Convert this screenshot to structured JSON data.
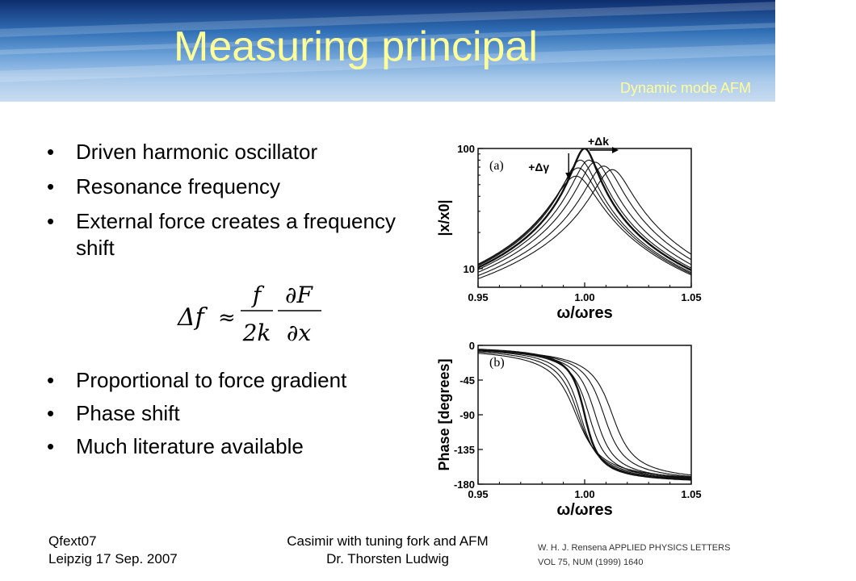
{
  "slide": {
    "title": "Measuring principal",
    "subtitle": "Dynamic mode AFM"
  },
  "bullets_top": [
    "Driven harmonic oscillator",
    "Resonance frequency",
    "External force creates a frequency shift"
  ],
  "formula": {
    "lhs": "Δf",
    "approx": "≈",
    "frac1_num": "f",
    "frac1_den": "2k",
    "frac2_num": "∂F",
    "frac2_den": "∂x"
  },
  "bullets_bottom": [
    "Proportional to force gradient",
    "Phase shift",
    "Much literature available"
  ],
  "footer": {
    "event_line1": "Qfext07",
    "event_line2": "Leipzig 17 Sep. 2007",
    "talk_line1": "Casimir with tuning fork and AFM",
    "talk_line2": "Dr. Thorsten Ludwig",
    "citation_line1": "W. H. J. Rensena  APPLIED PHYSICS LETTERS",
    "citation_line2": "VOL 75, NUM (1999) 1640"
  },
  "chart_data": [
    {
      "type": "line",
      "panel_label": "(a)",
      "xlabel": "ω/ωres",
      "ylabel": "|x/x0|",
      "x_ticks": [
        "0.95",
        "1.00",
        "1.05"
      ],
      "y_ticks": [
        "100",
        "10"
      ],
      "xlim": [
        0.95,
        1.05
      ],
      "ylim": [
        7,
        100
      ],
      "y_scale": "log",
      "annotations": [
        "+Δk",
        "+Δγ"
      ],
      "series": [
        {
          "x0": 1.0,
          "gamma": 0.01
        },
        {
          "x0": 1.002,
          "gamma": 0.0125
        },
        {
          "x0": 1.005,
          "gamma": 0.013
        },
        {
          "x0": 1.009,
          "gamma": 0.014
        },
        {
          "x0": 1.013,
          "gamma": 0.015
        },
        {
          "x0": 0.998,
          "gamma": 0.0125
        },
        {
          "x0": 0.997,
          "gamma": 0.0145
        },
        {
          "x0": 0.996,
          "gamma": 0.017
        }
      ]
    },
    {
      "type": "line",
      "panel_label": "(b)",
      "xlabel": "ω/ωres",
      "ylabel": "Phase [degrees]",
      "x_ticks": [
        "0.95",
        "1.00",
        "1.05"
      ],
      "y_ticks": [
        "0",
        "-45",
        "-90",
        "-135",
        "-180"
      ],
      "xlim": [
        0.95,
        1.05
      ],
      "ylim": [
        -180,
        0
      ],
      "series": [
        {
          "x0": 1.0,
          "gamma": 0.01
        },
        {
          "x0": 1.002,
          "gamma": 0.0125
        },
        {
          "x0": 1.005,
          "gamma": 0.013
        },
        {
          "x0": 1.009,
          "gamma": 0.014
        },
        {
          "x0": 1.013,
          "gamma": 0.015
        },
        {
          "x0": 0.998,
          "gamma": 0.0125
        },
        {
          "x0": 0.997,
          "gamma": 0.0145
        },
        {
          "x0": 0.996,
          "gamma": 0.017
        }
      ]
    }
  ]
}
